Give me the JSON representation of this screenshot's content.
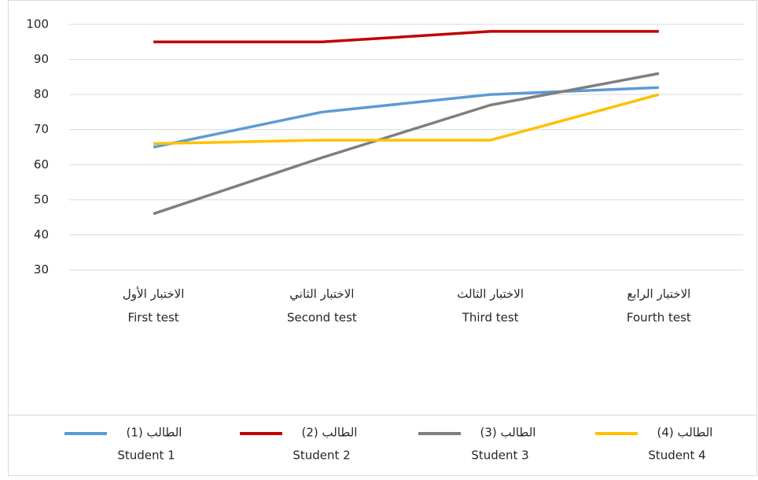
{
  "chart_data": {
    "type": "line",
    "categories": [
      [
        "الاختبار الأول",
        "First test"
      ],
      [
        "الاختبار الثاني",
        "Second test"
      ],
      [
        "الاختبار الثالث",
        "Third test"
      ],
      [
        "الاختبار الرابع",
        "Fourth test"
      ]
    ],
    "series": [
      {
        "name": [
          "الطالب (1)",
          "Student 1"
        ],
        "color": "#5b9bd5",
        "values": [
          65,
          75,
          80,
          82
        ]
      },
      {
        "name": [
          "الطالب (2)",
          "Student 2"
        ],
        "color": "#c00000",
        "values": [
          95,
          95,
          98,
          98
        ]
      },
      {
        "name": [
          "الطالب (3)",
          "Student 3"
        ],
        "color": "#7f7f7f",
        "values": [
          46,
          62,
          77,
          86
        ]
      },
      {
        "name": [
          "الطالب (4)",
          "Student 4"
        ],
        "color": "#ffc000",
        "values": [
          66,
          67,
          67,
          80
        ]
      }
    ],
    "ylim": [
      30,
      100
    ],
    "yticks": [
      30,
      40,
      50,
      60,
      70,
      80,
      90,
      100
    ],
    "grid": true,
    "legend": "bottom"
  }
}
